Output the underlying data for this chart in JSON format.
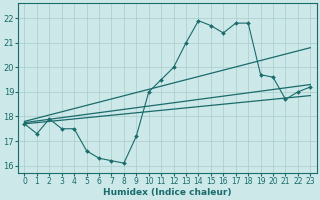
{
  "title": "",
  "xlabel": "Humidex (Indice chaleur)",
  "bg_color": "#cce8e8",
  "grid_color": "#aacccc",
  "line_color": "#1a6b6b",
  "xlim": [
    -0.5,
    23.5
  ],
  "ylim": [
    15.7,
    22.6
  ],
  "yticks": [
    16,
    17,
    18,
    19,
    20,
    21,
    22
  ],
  "xticks": [
    0,
    1,
    2,
    3,
    4,
    5,
    6,
    7,
    8,
    9,
    10,
    11,
    12,
    13,
    14,
    15,
    16,
    17,
    18,
    19,
    20,
    21,
    22,
    23
  ],
  "series1_x": [
    0,
    1,
    2,
    3,
    4,
    5,
    6,
    7,
    8,
    9,
    10,
    11,
    12,
    13,
    14,
    15,
    16,
    17,
    18,
    19,
    20,
    21,
    22,
    23
  ],
  "series1_y": [
    17.7,
    17.3,
    17.9,
    17.5,
    17.5,
    16.6,
    16.3,
    16.2,
    16.1,
    17.2,
    19.0,
    19.5,
    20.0,
    21.0,
    21.9,
    21.7,
    21.4,
    21.8,
    21.8,
    19.7,
    19.6,
    18.7,
    19.0,
    19.2
  ],
  "line2_x0": 0,
  "line2_x1": 23,
  "line2_y0": 17.8,
  "line2_y1": 20.8,
  "line3_x0": 0,
  "line3_x1": 23,
  "line3_y0": 17.75,
  "line3_y1": 19.3,
  "line4_x0": 0,
  "line4_x1": 23,
  "line4_y0": 17.7,
  "line4_y1": 18.85
}
